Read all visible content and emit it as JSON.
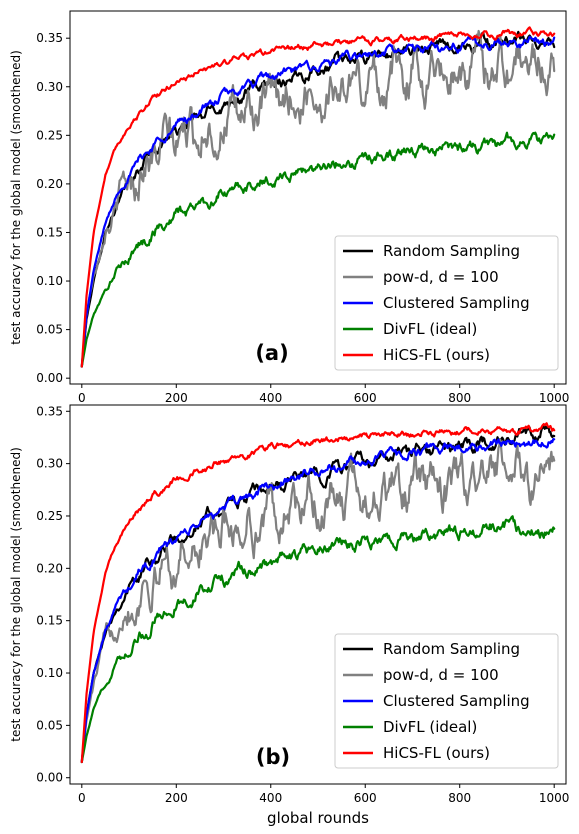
{
  "chart_data": [
    {
      "type": "line",
      "panel_label": "(a)",
      "xlabel": "",
      "ylabel": "test accuracy for the global model (smoothened)",
      "xlim": [
        -25,
        1025
      ],
      "ylim": [
        -0.006,
        0.378
      ],
      "xticks": [
        0,
        200,
        400,
        600,
        800,
        1000
      ],
      "yticks": [
        0.0,
        0.05,
        0.1,
        0.15,
        0.2,
        0.25,
        0.3,
        0.35
      ],
      "ytick_labels": [
        "0.00",
        "0.05",
        "0.10",
        "0.15",
        "0.20",
        "0.25",
        "0.30",
        "0.35"
      ],
      "legend_position": "lower-right",
      "series": [
        {
          "name": "Random Sampling",
          "color": "#000000",
          "x": [
            0,
            10,
            25,
            50,
            75,
            100,
            150,
            200,
            300,
            400,
            500,
            600,
            700,
            800,
            900,
            1000
          ],
          "y": [
            0.012,
            0.06,
            0.1,
            0.15,
            0.18,
            0.2,
            0.235,
            0.255,
            0.283,
            0.305,
            0.32,
            0.33,
            0.338,
            0.343,
            0.346,
            0.348
          ],
          "noise": 0.004
        },
        {
          "name": "pow-d, d = 100",
          "color": "#808080",
          "x": [
            0,
            10,
            25,
            50,
            75,
            100,
            150,
            200,
            300,
            400,
            500,
            600,
            700,
            800,
            900,
            1000
          ],
          "y": [
            0.012,
            0.065,
            0.11,
            0.155,
            0.18,
            0.2,
            0.23,
            0.245,
            0.265,
            0.28,
            0.293,
            0.305,
            0.315,
            0.32,
            0.325,
            0.325
          ],
          "noise": 0.014
        },
        {
          "name": "Clustered Sampling",
          "color": "#0000ff",
          "x": [
            0,
            10,
            25,
            50,
            75,
            100,
            150,
            200,
            300,
            400,
            500,
            600,
            700,
            800,
            900,
            1000
          ],
          "y": [
            0.012,
            0.065,
            0.11,
            0.16,
            0.19,
            0.21,
            0.24,
            0.26,
            0.29,
            0.31,
            0.322,
            0.332,
            0.338,
            0.343,
            0.346,
            0.348
          ],
          "noise": 0.003
        },
        {
          "name": "DivFL (ideal)",
          "color": "#008000",
          "x": [
            0,
            10,
            25,
            50,
            75,
            100,
            150,
            200,
            300,
            400,
            500,
            600,
            700,
            800,
            900,
            1000
          ],
          "y": [
            0.012,
            0.04,
            0.065,
            0.09,
            0.11,
            0.125,
            0.15,
            0.168,
            0.19,
            0.205,
            0.218,
            0.227,
            0.233,
            0.238,
            0.243,
            0.246
          ],
          "noise": 0.004
        },
        {
          "name": "HiCS-FL (ours)",
          "color": "#ff0000",
          "x": [
            0,
            10,
            25,
            50,
            75,
            100,
            150,
            200,
            300,
            400,
            500,
            600,
            700,
            800,
            900,
            1000
          ],
          "y": [
            0.012,
            0.085,
            0.15,
            0.21,
            0.24,
            0.26,
            0.288,
            0.305,
            0.325,
            0.337,
            0.343,
            0.347,
            0.35,
            0.352,
            0.354,
            0.355
          ],
          "noise": 0.002
        }
      ]
    },
    {
      "type": "line",
      "panel_label": "(b)",
      "xlabel": "global rounds",
      "ylabel": "test accuracy for the global model (smoothened)",
      "xlim": [
        -25,
        1025
      ],
      "ylim": [
        -0.006,
        0.356
      ],
      "xticks": [
        0,
        200,
        400,
        600,
        800,
        1000
      ],
      "yticks": [
        0.0,
        0.05,
        0.1,
        0.15,
        0.2,
        0.25,
        0.3,
        0.35
      ],
      "ytick_labels": [
        "0.00",
        "0.05",
        "0.10",
        "0.15",
        "0.20",
        "0.25",
        "0.30",
        "0.35"
      ],
      "legend_position": "lower-right",
      "series": [
        {
          "name": "Random Sampling",
          "color": "#000000",
          "x": [
            0,
            10,
            25,
            50,
            75,
            100,
            150,
            200,
            300,
            400,
            500,
            600,
            700,
            800,
            900,
            1000
          ],
          "y": [
            0.015,
            0.06,
            0.1,
            0.14,
            0.165,
            0.18,
            0.21,
            0.23,
            0.258,
            0.277,
            0.292,
            0.302,
            0.31,
            0.316,
            0.322,
            0.328
          ],
          "noise": 0.004
        },
        {
          "name": "pow-d, d = 100",
          "color": "#808080",
          "x": [
            0,
            10,
            25,
            50,
            75,
            100,
            150,
            200,
            300,
            400,
            500,
            600,
            700,
            800,
            900,
            1000
          ],
          "y": [
            0.015,
            0.055,
            0.09,
            0.13,
            0.155,
            0.17,
            0.195,
            0.21,
            0.235,
            0.25,
            0.262,
            0.27,
            0.278,
            0.283,
            0.287,
            0.29
          ],
          "noise": 0.013
        },
        {
          "name": "Clustered Sampling",
          "color": "#0000ff",
          "x": [
            0,
            10,
            25,
            50,
            75,
            100,
            150,
            200,
            300,
            400,
            500,
            600,
            700,
            800,
            900,
            1000
          ],
          "y": [
            0.015,
            0.06,
            0.1,
            0.14,
            0.165,
            0.182,
            0.21,
            0.228,
            0.258,
            0.278,
            0.293,
            0.303,
            0.31,
            0.316,
            0.32,
            0.323
          ],
          "noise": 0.003
        },
        {
          "name": "DivFL (ideal)",
          "color": "#008000",
          "x": [
            0,
            10,
            25,
            50,
            75,
            100,
            150,
            200,
            300,
            400,
            500,
            600,
            700,
            800,
            900,
            1000
          ],
          "y": [
            0.015,
            0.04,
            0.065,
            0.09,
            0.11,
            0.125,
            0.148,
            0.165,
            0.19,
            0.205,
            0.218,
            0.226,
            0.232,
            0.236,
            0.239,
            0.24
          ],
          "noise": 0.004
        },
        {
          "name": "HiCS-FL (ours)",
          "color": "#ff0000",
          "x": [
            0,
            10,
            25,
            50,
            75,
            100,
            150,
            200,
            300,
            400,
            500,
            600,
            700,
            800,
            900,
            1000
          ],
          "y": [
            0.015,
            0.08,
            0.14,
            0.195,
            0.225,
            0.245,
            0.27,
            0.285,
            0.303,
            0.315,
            0.322,
            0.326,
            0.329,
            0.331,
            0.332,
            0.333
          ],
          "noise": 0.002
        }
      ]
    }
  ]
}
